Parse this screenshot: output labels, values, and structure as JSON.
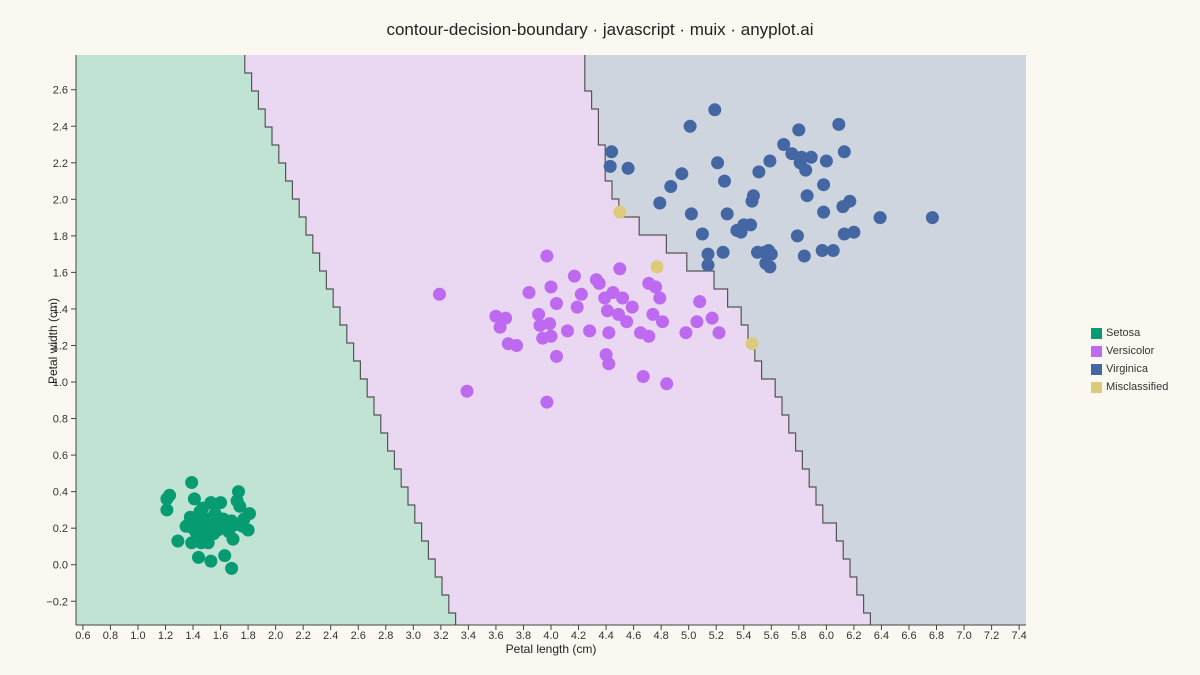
{
  "chart_data": {
    "type": "scatter",
    "title": "contour-decision-boundary · javascript · muix · anyplot.ai",
    "xlabel": "Petal length (cm)",
    "ylabel": "Petal width (cm)",
    "xlim": [
      0.55,
      7.45
    ],
    "ylim": [
      -0.33,
      2.79
    ],
    "xticks": [
      0.6,
      0.8,
      1.0,
      1.2,
      1.4,
      1.6,
      1.8,
      2.0,
      2.2,
      2.4,
      2.6,
      2.8,
      3.0,
      3.2,
      3.4,
      3.6,
      3.8,
      4.0,
      4.2,
      4.4,
      4.6,
      4.8,
      5.0,
      5.2,
      5.4,
      5.6,
      5.8,
      6.0,
      6.2,
      6.4,
      6.6,
      6.8,
      7.0,
      7.2,
      7.4
    ],
    "yticks": [
      -0.2,
      0.0,
      0.2,
      0.4,
      0.6,
      0.8,
      1.0,
      1.2,
      1.4,
      1.6,
      1.8,
      2.0,
      2.2,
      2.4,
      2.6
    ],
    "grid": false,
    "legend_position": "right",
    "regions": [
      {
        "name": "Setosa",
        "color": "#C0E3D4"
      },
      {
        "name": "Versicolor",
        "color": "#EAD7F1"
      },
      {
        "name": "Virginica",
        "color": "#CED5DF"
      }
    ],
    "boundary_setosa_versicolor": [
      [
        1.76,
        2.79
      ],
      [
        3.31,
        -0.33
      ]
    ],
    "boundary_versicolor_virginica": [
      [
        4.23,
        2.79
      ],
      [
        4.44,
        2.0
      ],
      [
        4.64,
        1.86
      ],
      [
        5.2,
        1.55
      ],
      [
        5.43,
        1.28
      ],
      [
        6.34,
        -0.33
      ]
    ],
    "series": [
      {
        "name": "Setosa",
        "color": "#079B72",
        "points": [
          [
            1.21,
            0.36
          ],
          [
            1.23,
            0.38
          ],
          [
            1.21,
            0.3
          ],
          [
            1.39,
            0.45
          ],
          [
            1.73,
            0.4
          ],
          [
            1.29,
            0.13
          ],
          [
            1.38,
            0.26
          ],
          [
            1.37,
            0.22
          ],
          [
            1.4,
            0.2
          ],
          [
            1.42,
            0.18
          ],
          [
            1.45,
            0.24
          ],
          [
            1.45,
            0.29
          ],
          [
            1.48,
            0.21
          ],
          [
            1.5,
            0.17
          ],
          [
            1.52,
            0.25
          ],
          [
            1.54,
            0.21
          ],
          [
            1.55,
            0.17
          ],
          [
            1.56,
            0.28
          ],
          [
            1.58,
            0.22
          ],
          [
            1.6,
            0.34
          ],
          [
            1.62,
            0.25
          ],
          [
            1.63,
            0.21
          ],
          [
            1.66,
            0.18
          ],
          [
            1.68,
            0.24
          ],
          [
            1.71,
            0.22
          ],
          [
            1.72,
            0.35
          ],
          [
            1.74,
            0.32
          ],
          [
            1.77,
            0.25
          ],
          [
            1.76,
            0.21
          ],
          [
            1.81,
            0.28
          ],
          [
            1.8,
            0.19
          ],
          [
            1.53,
            0.34
          ],
          [
            1.41,
            0.36
          ],
          [
            1.39,
            0.12
          ],
          [
            1.46,
            0.12
          ],
          [
            1.44,
            0.04
          ],
          [
            1.53,
            0.02
          ],
          [
            1.63,
            0.05
          ],
          [
            1.68,
            -0.02
          ],
          [
            1.51,
            0.12
          ],
          [
            1.58,
            0.19
          ],
          [
            1.48,
            0.15
          ],
          [
            1.69,
            0.14
          ],
          [
            1.35,
            0.21
          ],
          [
            1.47,
            0.31
          ]
        ]
      },
      {
        "name": "Versicolor",
        "color": "#BD6AF0",
        "points": [
          [
            3.19,
            1.48
          ],
          [
            3.39,
            0.95
          ],
          [
            3.6,
            1.36
          ],
          [
            3.63,
            1.3
          ],
          [
            3.67,
            1.35
          ],
          [
            3.69,
            1.21
          ],
          [
            3.75,
            1.2
          ],
          [
            3.84,
            1.49
          ],
          [
            3.91,
            1.37
          ],
          [
            3.92,
            1.31
          ],
          [
            3.94,
            1.24
          ],
          [
            3.97,
            1.69
          ],
          [
            3.97,
            0.89
          ],
          [
            3.99,
            1.32
          ],
          [
            4.0,
            1.52
          ],
          [
            4.0,
            1.25
          ],
          [
            4.04,
            1.14
          ],
          [
            4.04,
            1.43
          ],
          [
            4.12,
            1.28
          ],
          [
            4.17,
            1.58
          ],
          [
            4.19,
            1.41
          ],
          [
            4.22,
            1.48
          ],
          [
            4.28,
            1.28
          ],
          [
            4.33,
            1.56
          ],
          [
            4.35,
            1.54
          ],
          [
            4.39,
            1.46
          ],
          [
            4.4,
            1.15
          ],
          [
            4.41,
            1.39
          ],
          [
            4.42,
            1.1
          ],
          [
            4.42,
            1.27
          ],
          [
            4.49,
            1.37
          ],
          [
            4.5,
            1.62
          ],
          [
            4.52,
            1.46
          ],
          [
            4.55,
            1.33
          ],
          [
            4.59,
            1.41
          ],
          [
            4.65,
            1.27
          ],
          [
            4.67,
            1.03
          ],
          [
            4.71,
            1.25
          ],
          [
            4.71,
            1.54
          ],
          [
            4.74,
            1.37
          ],
          [
            4.76,
            1.52
          ],
          [
            4.79,
            1.46
          ],
          [
            4.81,
            1.33
          ],
          [
            4.84,
            0.99
          ],
          [
            4.98,
            1.27
          ],
          [
            5.06,
            1.33
          ],
          [
            5.08,
            1.44
          ],
          [
            5.17,
            1.35
          ],
          [
            5.22,
            1.27
          ],
          [
            4.45,
            1.49
          ]
        ]
      },
      {
        "name": "Virginica",
        "color": "#4467A3",
        "points": [
          [
            4.44,
            2.26
          ],
          [
            4.43,
            2.18
          ],
          [
            4.56,
            2.17
          ],
          [
            4.79,
            1.98
          ],
          [
            4.87,
            2.07
          ],
          [
            4.95,
            2.14
          ],
          [
            5.01,
            2.4
          ],
          [
            5.02,
            1.92
          ],
          [
            5.1,
            1.81
          ],
          [
            5.14,
            1.7
          ],
          [
            5.14,
            1.64
          ],
          [
            5.19,
            2.49
          ],
          [
            5.21,
            2.2
          ],
          [
            5.25,
            1.71
          ],
          [
            5.26,
            2.1
          ],
          [
            5.28,
            1.92
          ],
          [
            5.35,
            1.83
          ],
          [
            5.38,
            1.82
          ],
          [
            5.4,
            1.86
          ],
          [
            5.45,
            1.86
          ],
          [
            5.46,
            1.99
          ],
          [
            5.47,
            2.02
          ],
          [
            5.5,
            1.71
          ],
          [
            5.51,
            2.15
          ],
          [
            5.55,
            1.71
          ],
          [
            5.56,
            1.65
          ],
          [
            5.58,
            1.72
          ],
          [
            5.59,
            1.63
          ],
          [
            5.59,
            2.21
          ],
          [
            5.6,
            1.7
          ],
          [
            5.69,
            2.3
          ],
          [
            5.75,
            2.25
          ],
          [
            5.79,
            1.8
          ],
          [
            5.8,
            2.38
          ],
          [
            5.81,
            2.2
          ],
          [
            5.82,
            2.23
          ],
          [
            5.84,
            1.69
          ],
          [
            5.85,
            2.16
          ],
          [
            5.86,
            2.02
          ],
          [
            5.89,
            2.23
          ],
          [
            5.97,
            1.72
          ],
          [
            5.98,
            1.93
          ],
          [
            5.98,
            2.08
          ],
          [
            6.0,
            2.21
          ],
          [
            6.05,
            1.72
          ],
          [
            6.09,
            2.41
          ],
          [
            6.12,
            1.96
          ],
          [
            6.13,
            1.81
          ],
          [
            6.13,
            2.26
          ],
          [
            6.17,
            1.99
          ],
          [
            6.2,
            1.82
          ],
          [
            6.39,
            1.9
          ],
          [
            6.77,
            1.9
          ]
        ]
      },
      {
        "name": "Misclassified",
        "color": "#DDCB7B",
        "points": [
          [
            4.5,
            1.93
          ],
          [
            4.77,
            1.63
          ],
          [
            5.46,
            1.21
          ]
        ]
      }
    ]
  }
}
